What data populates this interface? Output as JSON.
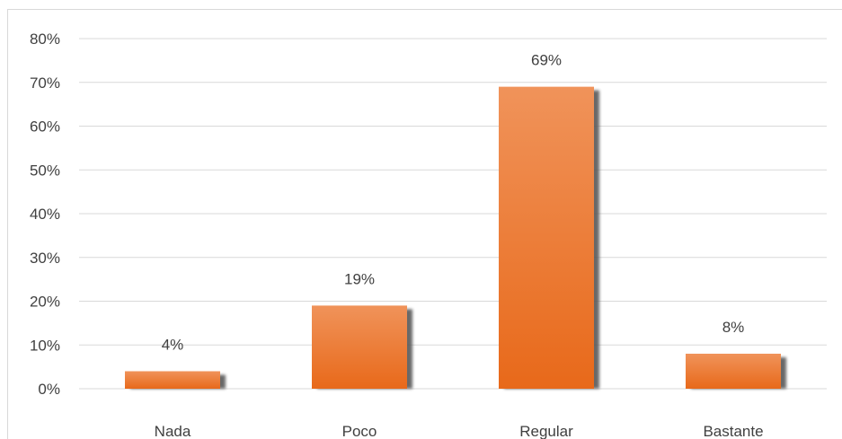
{
  "chart_data": {
    "type": "bar",
    "title": "",
    "xlabel": "",
    "ylabel": "",
    "categories": [
      "Nada",
      "Poco",
      "Regular",
      "Bastante"
    ],
    "values": [
      4,
      19,
      69,
      8
    ],
    "data_labels": [
      "4%",
      "19%",
      "69%",
      "8%"
    ],
    "ylim": [
      0,
      80
    ],
    "yticks": [
      0,
      10,
      20,
      30,
      40,
      50,
      60,
      70,
      80
    ],
    "ytick_labels": [
      "0%",
      "10%",
      "20%",
      "30%",
      "40%",
      "50%",
      "60%",
      "70%",
      "80%"
    ],
    "grid": true,
    "legend": "none",
    "colors": {
      "bar_top": "#f0935a",
      "bar_bottom": "#e8691a",
      "shadow": "#595959",
      "grid": "#d9d9d9",
      "text": "#404040"
    }
  }
}
